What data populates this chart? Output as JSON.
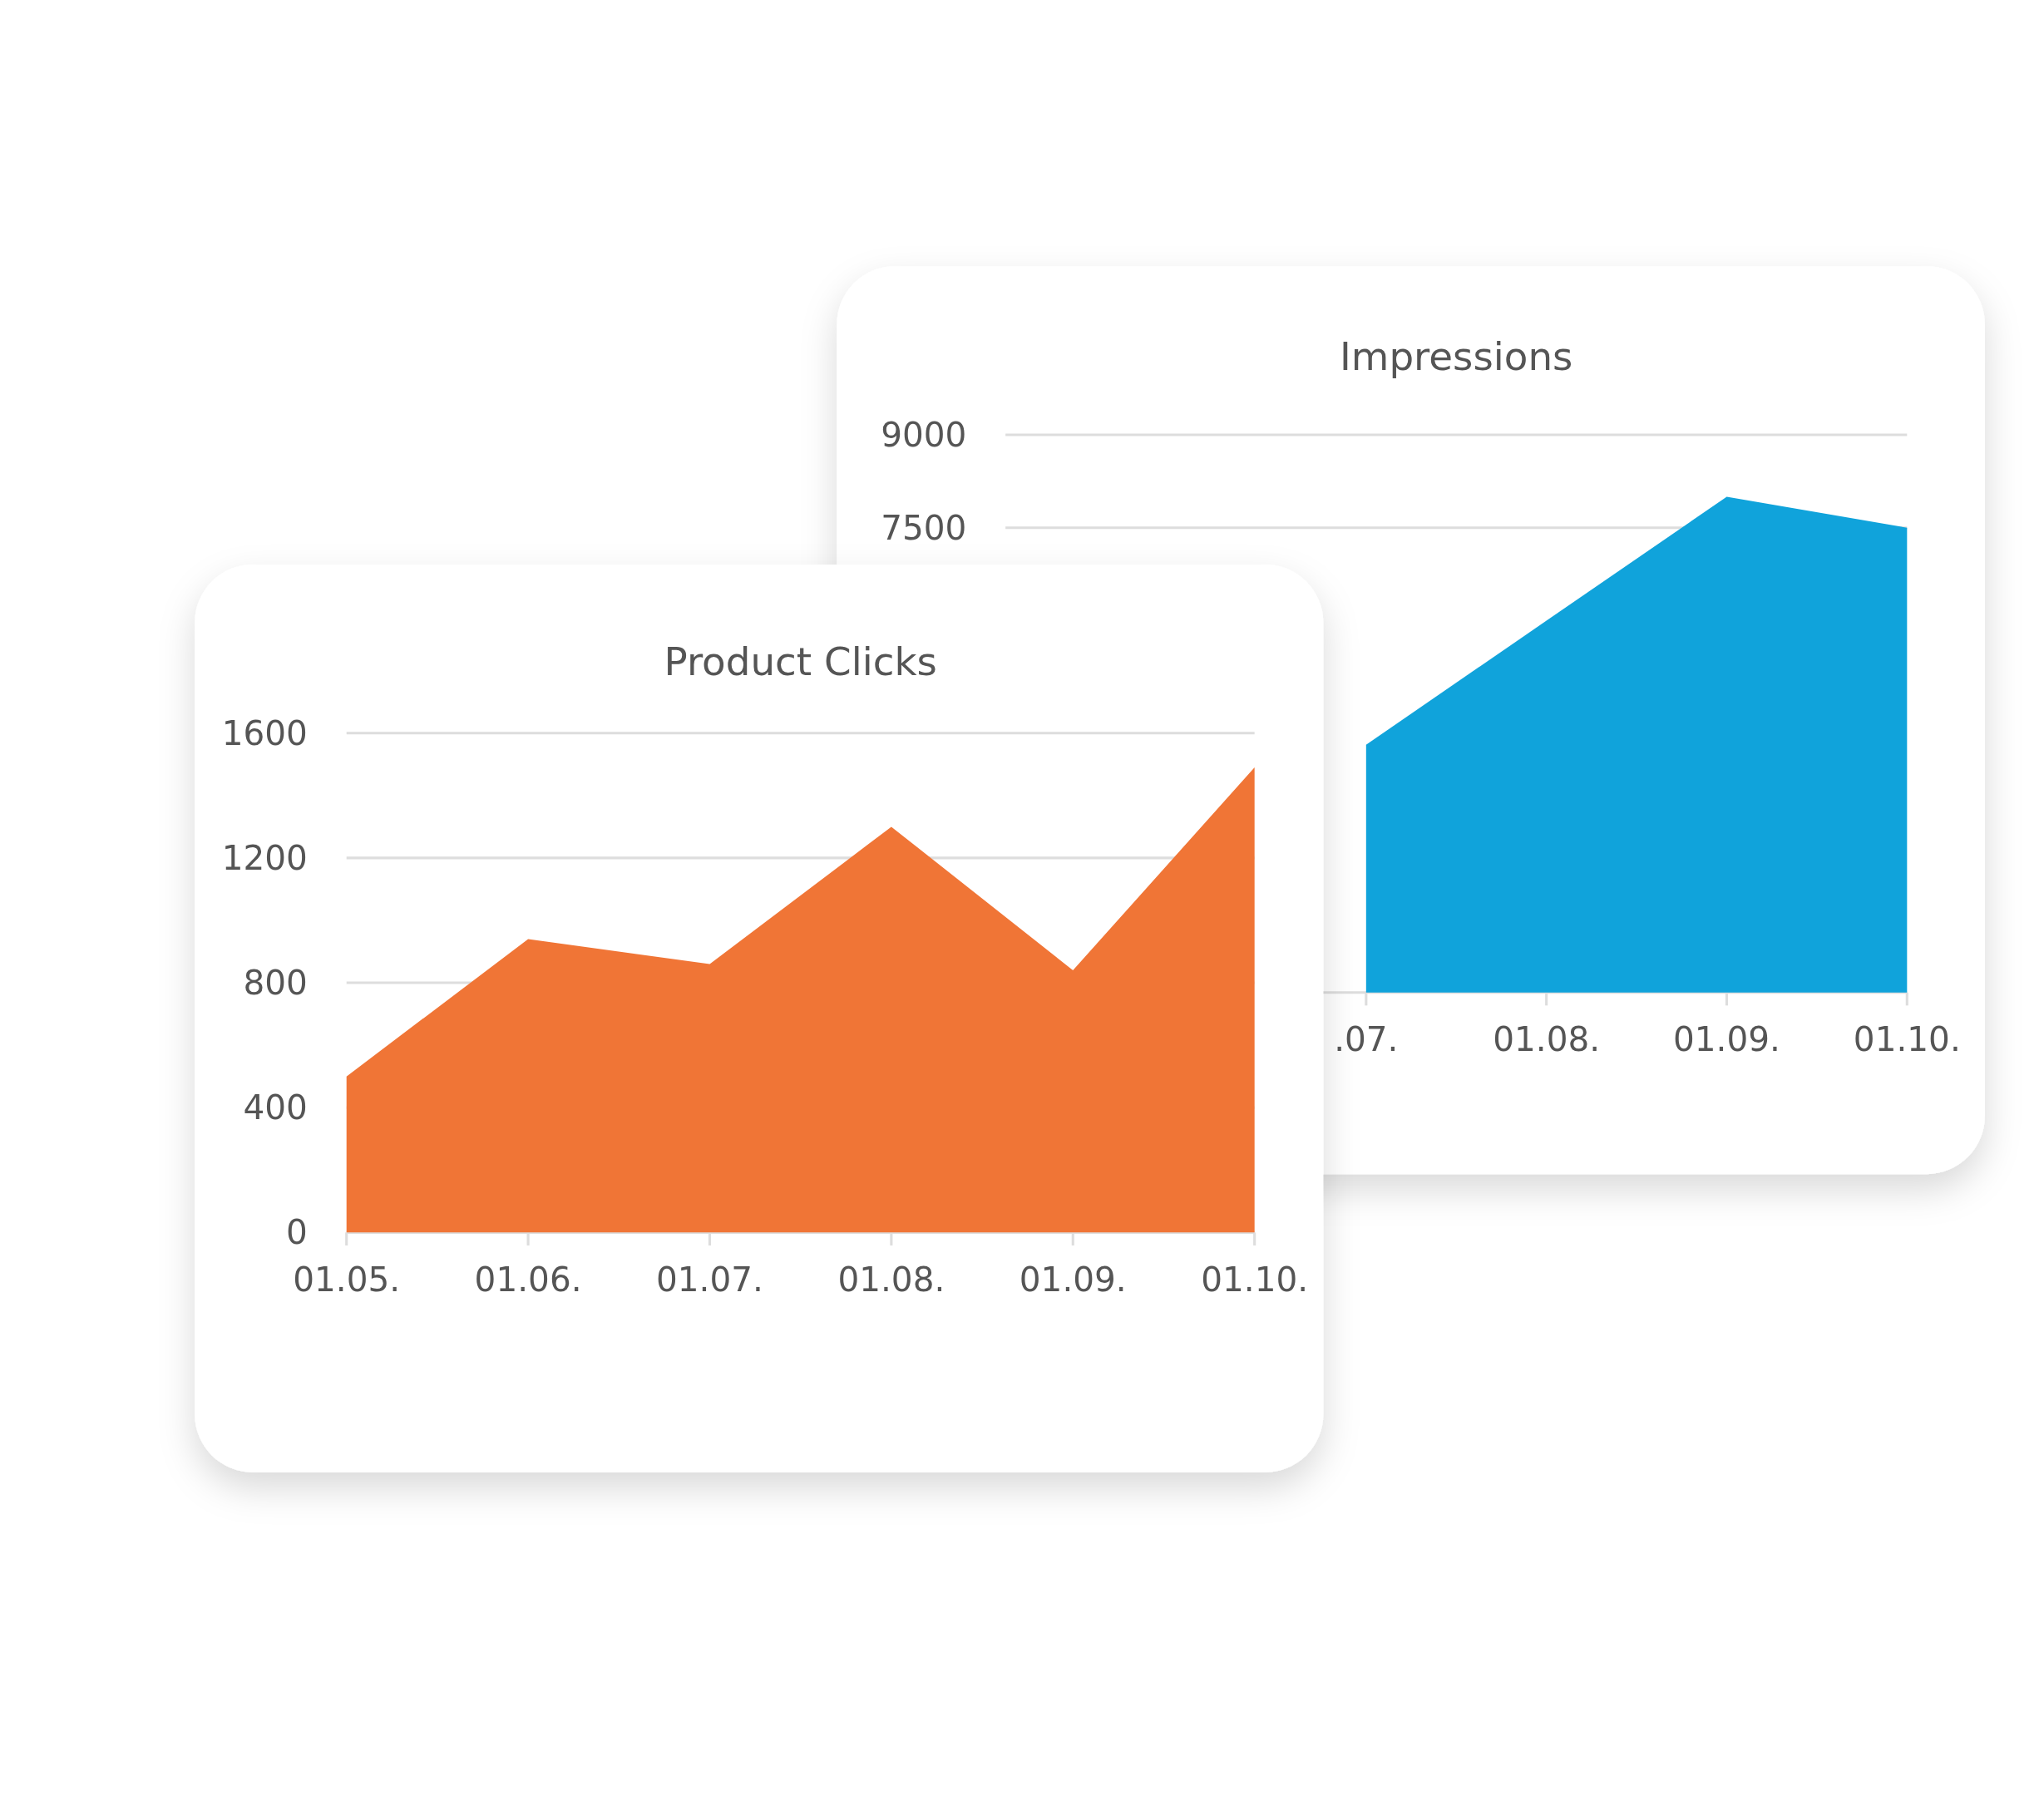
{
  "chart_data": [
    {
      "type": "area",
      "title": "Product Clicks",
      "categories": [
        "01.05.",
        "01.06.",
        "01.07.",
        "01.08.",
        "01.09.",
        "01.10."
      ],
      "values": [
        500,
        940,
        860,
        1300,
        840,
        1490
      ],
      "color": "#f07536",
      "ylim": [
        0,
        1600
      ],
      "yticks": [
        0,
        400,
        800,
        1200,
        1600
      ],
      "grid": "y"
    },
    {
      "type": "area",
      "title": "Impressions",
      "categories": [
        null,
        null,
        ".07.",
        "01.08.",
        "01.09.",
        "01.10."
      ],
      "values": [
        null,
        null,
        4000,
        6000,
        8000,
        7500
      ],
      "color": "#10a3db",
      "ylim": [
        0,
        9000
      ],
      "yticks": [
        7500,
        9000
      ],
      "grid": "y"
    }
  ]
}
